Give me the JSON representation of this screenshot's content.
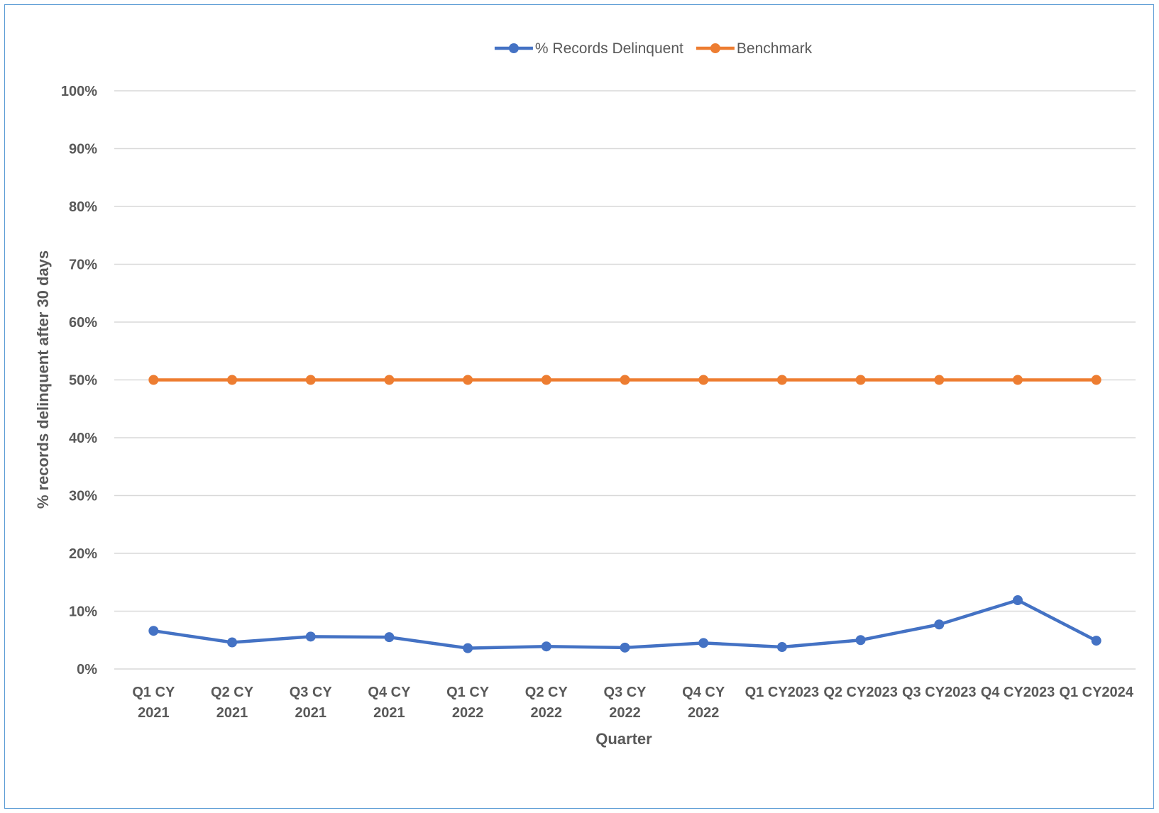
{
  "chart_data": {
    "type": "line",
    "title": "",
    "xlabel": "Quarter",
    "ylabel": "% records delinquent after 30 days",
    "ylim": [
      0,
      100
    ],
    "yticks": [
      "0%",
      "10%",
      "20%",
      "30%",
      "40%",
      "50%",
      "60%",
      "70%",
      "80%",
      "90%",
      "100%"
    ],
    "y_tick_values": [
      0,
      10,
      20,
      30,
      40,
      50,
      60,
      70,
      80,
      90,
      100
    ],
    "grid": true,
    "legend_position": "top-center",
    "categories": [
      [
        "Q1 CY",
        "2021"
      ],
      [
        "Q2 CY",
        "2021"
      ],
      [
        "Q3 CY",
        "2021"
      ],
      [
        "Q4 CY",
        "2021"
      ],
      [
        "Q1 CY",
        "2022"
      ],
      [
        "Q2 CY",
        "2022"
      ],
      [
        "Q3 CY",
        "2022"
      ],
      [
        "Q4 CY",
        "2022"
      ],
      [
        "Q1 CY2023"
      ],
      [
        "Q2 CY2023"
      ],
      [
        "Q3 CY2023"
      ],
      [
        "Q4 CY2023"
      ],
      [
        "Q1 CY2024"
      ]
    ],
    "series": [
      {
        "name": "% Records Delinquent",
        "color": "#4472c4",
        "values": [
          6.6,
          4.6,
          5.6,
          5.5,
          3.6,
          3.9,
          3.7,
          4.5,
          3.8,
          5.0,
          7.7,
          11.9,
          4.9
        ]
      },
      {
        "name": "Benchmark",
        "color": "#ed7d31",
        "values": [
          50,
          50,
          50,
          50,
          50,
          50,
          50,
          50,
          50,
          50,
          50,
          50,
          50
        ]
      }
    ]
  }
}
